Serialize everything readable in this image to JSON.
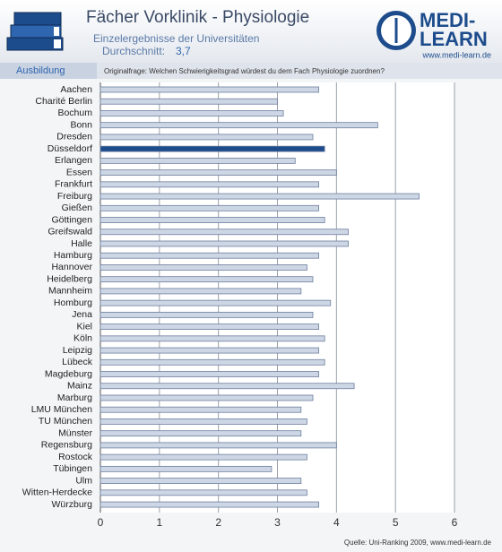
{
  "header": {
    "title": "Fächer Vorklinik - Physiologie",
    "subtitle": "Einzelergebnisse der Universitäten",
    "average_label": "Durchschnitt:",
    "average": "3,7",
    "logo": [
      "MEDI-",
      "LEARN"
    ],
    "logo_url": "www.medi-learn.de",
    "section": "Ausbildung",
    "question": "Originalfrage: Welchen Schwierigkeitsgrad würdest du dem Fach Physiologie zuordnen?"
  },
  "chart_data": {
    "type": "hbar",
    "categories": [
      "Aachen",
      "Charité Berlin",
      "Bochum",
      "Bonn",
      "Dresden",
      "Düsseldorf",
      "Erlangen",
      "Essen",
      "Frankfurt",
      "Freiburg",
      "Gießen",
      "Göttingen",
      "Greifswald",
      "Halle",
      "Hamburg",
      "Hannover",
      "Heidelberg",
      "Mannheim",
      "Homburg",
      "Jena",
      "Kiel",
      "Köln",
      "Leipzig",
      "Lübeck",
      "Magdeburg",
      "Mainz",
      "Marburg",
      "LMU München",
      "TU München",
      "Münster",
      "Regensburg",
      "Rostock",
      "Tübingen",
      "Ulm",
      "Witten-Herdecke",
      "Würzburg"
    ],
    "values": [
      3.7,
      3.0,
      3.1,
      4.7,
      3.6,
      3.8,
      3.3,
      4.0,
      3.7,
      5.4,
      3.7,
      3.8,
      4.2,
      4.2,
      3.7,
      3.5,
      3.6,
      3.4,
      3.9,
      3.6,
      3.7,
      3.8,
      3.7,
      3.8,
      3.7,
      4.3,
      3.6,
      3.4,
      3.5,
      3.4,
      4.0,
      3.5,
      2.9,
      3.4,
      3.5,
      3.7
    ],
    "colors": [
      "#cdd6e4",
      "#cdd6e4",
      "#cdd6e4",
      "#cdd6e4",
      "#cdd6e4",
      "#1d4c8c",
      "#cdd6e4",
      "#cdd6e4",
      "#cdd6e4",
      "#cdd6e4",
      "#cdd6e4",
      "#cdd6e4",
      "#cdd6e4",
      "#cdd6e4",
      "#cdd6e4",
      "#cdd6e4",
      "#cdd6e4",
      "#cdd6e4",
      "#cdd6e4",
      "#cdd6e4",
      "#cdd6e4",
      "#cdd6e4",
      "#cdd6e4",
      "#cdd6e4",
      "#cdd6e4",
      "#cdd6e4",
      "#cdd6e4",
      "#cdd6e4",
      "#cdd6e4",
      "#cdd6e4",
      "#cdd6e4",
      "#cdd6e4",
      "#cdd6e4",
      "#cdd6e4",
      "#cdd6e4",
      "#cdd6e4"
    ],
    "xlim": [
      0,
      6
    ],
    "xticks": [
      0,
      1,
      2,
      3,
      4,
      5,
      6
    ],
    "grid": true,
    "source": "Quelle: Uni-Ranking 2009, www.medi-learn.de"
  }
}
